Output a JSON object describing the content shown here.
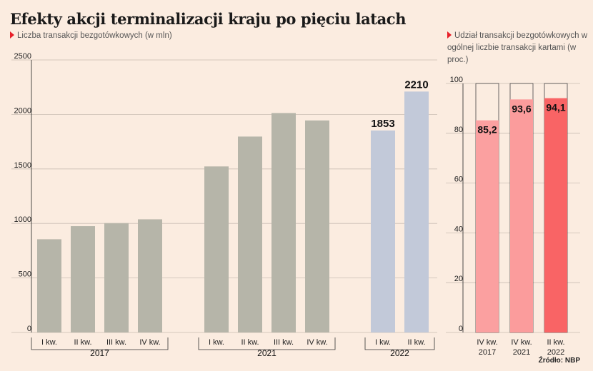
{
  "title": "Efekty akcji terminalizacji kraju po pięciu latach",
  "source": "Źródło: NBP",
  "chart_data": [
    {
      "type": "bar",
      "subtitle": "Liczba transakcji bezgotówkowych (w mln)",
      "ylim": [
        0,
        2500
      ],
      "yticks": [
        0,
        500,
        1000,
        1500,
        2000,
        2500
      ],
      "grid": true,
      "groups": [
        {
          "year": "2017",
          "categories": [
            "I kw.",
            "II kw.",
            "III kw.",
            "IV kw."
          ],
          "values": [
            855,
            975,
            1003,
            1038
          ],
          "labels": [
            "",
            "",
            "",
            ""
          ]
        },
        {
          "year": "2021",
          "categories": [
            "I kw.",
            "II kw.",
            "III kw.",
            "IV kw."
          ],
          "values": [
            1523,
            1797,
            2013,
            1945
          ],
          "labels": [
            "",
            "",
            "",
            ""
          ]
        },
        {
          "year": "2022",
          "categories": [
            "I kw.",
            "II kw."
          ],
          "values": [
            1853,
            2210
          ],
          "labels": [
            "1853",
            "2210"
          ]
        }
      ],
      "colors": {
        "past": "#b6b5a9",
        "current": "#c2c9d9"
      }
    },
    {
      "type": "bar",
      "subtitle": "Udział transakcji bezgotówkowych w ogólnej liczbie transakcji kartami (w proc.)",
      "ylim": [
        0,
        100
      ],
      "yticks": [
        0,
        20,
        40,
        60,
        80,
        100
      ],
      "grid": true,
      "categories": [
        [
          "IV kw.",
          "2017"
        ],
        [
          "IV kw.",
          "2021"
        ],
        [
          "II kw.",
          "2022"
        ]
      ],
      "values": [
        85.2,
        93.6,
        94.1
      ],
      "labels": [
        "85,2",
        "93,6",
        "94,1"
      ],
      "colors": [
        "#fba0a0",
        "#fb9c9c",
        "#f96465"
      ]
    }
  ]
}
